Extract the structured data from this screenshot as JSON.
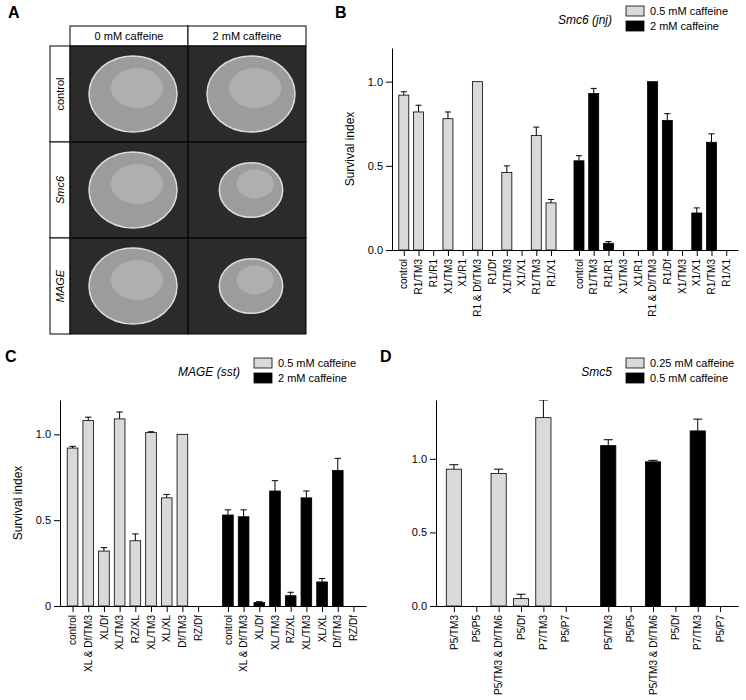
{
  "image_panel": {
    "panel": "A",
    "columns": [
      "0 mM caffeine",
      "2 mM caffeine"
    ],
    "rows": [
      "control",
      "Smc6",
      "MAGE"
    ]
  },
  "chart_data": [
    {
      "type": "bar",
      "panel": "B",
      "title": "Smc6 (jnj)",
      "y_label": "Survival index",
      "legend": "top-right",
      "ylim": [
        0,
        1.2
      ],
      "yticks": [
        {
          "value": 0,
          "label": "0.0"
        },
        0.5,
        {
          "value": 1,
          "label": "1.0"
        }
      ],
      "categories": [
        "control",
        "R1/TM3",
        "R1/R1",
        "X1/TM3",
        "X1/R1",
        "R1 & Df/TM3",
        "R1/Df",
        "X1/TM3",
        "X1/X1",
        "R1/TM3",
        "R1/X1",
        "control",
        "R1/TM3",
        "R1/R1",
        "X1/TM3",
        "X1/R1",
        "R1 & Df/TM3",
        "R1/Df",
        "X1/TM3",
        "X1/X1",
        "R1/TM3",
        "R1/X1"
      ],
      "series": [
        {
          "name": "0.5 mM caffeine",
          "color": "#d9d9d9",
          "values": [
            0.92,
            0.82,
            0,
            0.78,
            0,
            1.0,
            0,
            0.46,
            0,
            0.68,
            0.28,
            null,
            null,
            null,
            null,
            null,
            null,
            null,
            null,
            null,
            null,
            null
          ],
          "errors": [
            0.02,
            0.04,
            null,
            0.04,
            null,
            null,
            null,
            0.04,
            null,
            0.05,
            0.02,
            null,
            null,
            null,
            null,
            null,
            null,
            null,
            null,
            null,
            null,
            null
          ]
        },
        {
          "name": "2 mM caffeine",
          "color": "#000000",
          "values": [
            null,
            null,
            null,
            null,
            null,
            null,
            null,
            null,
            null,
            null,
            null,
            0.53,
            0.93,
            0.04,
            0,
            0,
            1.0,
            0.77,
            0,
            0.22,
            0.64,
            0
          ],
          "errors": [
            null,
            null,
            null,
            null,
            null,
            null,
            null,
            null,
            null,
            null,
            null,
            0.03,
            0.03,
            0.01,
            null,
            null,
            null,
            0.04,
            null,
            0.03,
            0.05,
            null
          ]
        }
      ]
    },
    {
      "type": "bar",
      "panel": "C",
      "title": "MAGE (sst)",
      "y_label": "Survival index",
      "legend": "top-right",
      "ylim": [
        0,
        1.2
      ],
      "yticks": [
        0,
        0.5,
        {
          "value": 1,
          "label": "1.0"
        }
      ],
      "categories": [
        "control",
        "XL & Df/TM3",
        "XL/Df",
        "XL/TM3",
        "RZ/XL",
        "XL/TM3",
        "XL/XL",
        "Df/TM3",
        "RZ/Df",
        "control",
        "XL & Df/TM3",
        "XL/Df",
        "XL/TM3",
        "RZ/XL",
        "XL/TM3",
        "XL/XL",
        "Df/TM3",
        "RZ/Df"
      ],
      "series": [
        {
          "name": "0.5 mM caffeine",
          "color": "#d9d9d9",
          "values": [
            0.92,
            1.08,
            0.32,
            1.09,
            0.38,
            1.01,
            0.63,
            1.0,
            0,
            null,
            null,
            null,
            null,
            null,
            null,
            null,
            null,
            null
          ],
          "errors": [
            0.01,
            0.02,
            0.02,
            0.04,
            0.04,
            0.005,
            0.02,
            null,
            null,
            null,
            null,
            null,
            null,
            null,
            null,
            null,
            null,
            null
          ]
        },
        {
          "name": "2 mM caffeine",
          "color": "#000000",
          "values": [
            null,
            null,
            null,
            null,
            null,
            null,
            null,
            null,
            null,
            0.53,
            0.52,
            0.02,
            0.67,
            0.06,
            0.63,
            0.14,
            0.79,
            0
          ],
          "errors": [
            null,
            null,
            null,
            null,
            null,
            null,
            null,
            null,
            null,
            0.03,
            0.04,
            0.005,
            0.06,
            0.02,
            0.04,
            0.02,
            0.07,
            null
          ]
        }
      ]
    },
    {
      "type": "bar",
      "panel": "D",
      "title": "Smc5",
      "legend": "top-right",
      "ylim": [
        0,
        1.4
      ],
      "yticks": [
        {
          "value": 0,
          "label": "0.0"
        },
        0.5,
        {
          "value": 1,
          "label": "1.0"
        }
      ],
      "categories": [
        "P5/TM3",
        "P5/P5",
        "P5/TM3 & Df/TM6",
        "P5/Df",
        "P7/TM3",
        "P5/P7",
        "P5/TM3",
        "P5/P5",
        "P5/TM3 & Df/TM6",
        "P5/Df",
        "P7/TM3",
        "P5/P7"
      ],
      "series": [
        {
          "name": "0.25 mM caffeine",
          "color": "#d9d9d9",
          "values": [
            0.93,
            0,
            0.9,
            0.05,
            1.28,
            0,
            null,
            null,
            null,
            null,
            null,
            null
          ],
          "errors": [
            0.03,
            null,
            0.03,
            0.03,
            0.12,
            null,
            null,
            null,
            null,
            null,
            null,
            null
          ]
        },
        {
          "name": "0.5 mM caffeine",
          "color": "#000000",
          "values": [
            null,
            null,
            null,
            null,
            null,
            null,
            1.09,
            0,
            0.98,
            0,
            1.19,
            0
          ],
          "errors": [
            null,
            null,
            null,
            null,
            null,
            null,
            0.04,
            null,
            0.01,
            null,
            0.08,
            null
          ]
        }
      ]
    }
  ]
}
